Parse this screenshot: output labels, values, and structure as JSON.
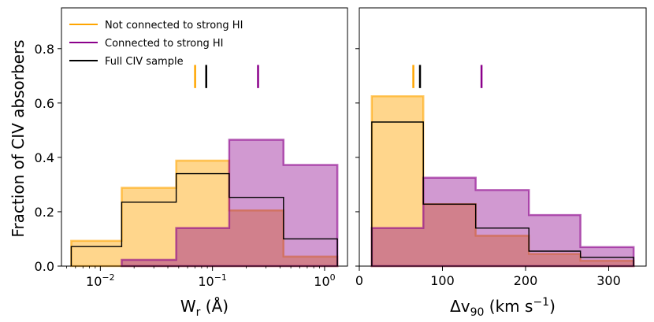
{
  "figure": {
    "ylabel": "Fraction of CIV absorbers"
  },
  "colors": {
    "not_connected": "#FFA500",
    "connected": "#8B008B",
    "full": "#000000",
    "fill_not_connected": "#FDCB7C",
    "fill_connected": "#B964B4",
    "fill_overlap": "#DB9E7E"
  },
  "chart_data": [
    {
      "type": "histogram",
      "xscale": "log",
      "xlabel": "W_r (Å)",
      "xlabel_main": "W",
      "xlabel_sub": "r",
      "xlabel_unit": " (Å)",
      "xlim": [
        0.0045,
        1.6
      ],
      "ylim": [
        0,
        0.95
      ],
      "xticks": [
        {
          "value": 0.01,
          "base": "10",
          "exp": "−2"
        },
        {
          "value": 0.1,
          "base": "10",
          "exp": "−1"
        },
        {
          "value": 1,
          "base": "10",
          "exp": "0"
        }
      ],
      "yticks": [
        "0.0",
        "0.2",
        "0.4",
        "0.6",
        "0.8"
      ],
      "legend": {
        "position": "top-left",
        "entries": [
          "Not connected to strong HI",
          "Connected to strong HI",
          "Full CIV sample"
        ]
      },
      "series": [
        {
          "name": "Not connected to strong HI",
          "edges": [
            0.0055,
            0.0155,
            0.0475,
            0.141,
            0.43,
            1.3
          ],
          "values": [
            0.093,
            0.288,
            0.388,
            0.205,
            0.035
          ]
        },
        {
          "name": "Connected to strong HI",
          "edges": [
            0.0155,
            0.0475,
            0.141,
            0.43,
            1.3
          ],
          "values": [
            0.023,
            0.14,
            0.465,
            0.372
          ]
        },
        {
          "name": "Full CIV sample",
          "edges": [
            0.0055,
            0.0155,
            0.0475,
            0.141,
            0.43,
            1.3
          ],
          "values": [
            0.072,
            0.235,
            0.34,
            0.253,
            0.1
          ]
        }
      ],
      "median_markers": [
        {
          "series": "Not connected to strong HI",
          "x": 0.07
        },
        {
          "series": "Full CIV sample",
          "x": 0.088
        },
        {
          "series": "Connected to strong HI",
          "x": 0.255
        }
      ]
    },
    {
      "type": "histogram",
      "xscale": "linear",
      "xlabel": "Δv_90 (km s^−1)",
      "xlabel_main": "Δv",
      "xlabel_sub": "90",
      "xlabel_unit": " (km s",
      "xlabel_unit_exp": "−1",
      "xlabel_close": ")",
      "xlim": [
        0,
        345
      ],
      "ylim": [
        0,
        0.95
      ],
      "xticks": [
        {
          "value": 0,
          "label": "0"
        },
        {
          "value": 100,
          "label": "100"
        },
        {
          "value": 200,
          "label": "200"
        },
        {
          "value": 300,
          "label": "300"
        }
      ],
      "series": [
        {
          "name": "Not connected to strong HI",
          "edges": [
            15,
            77,
            140,
            204,
            266,
            330
          ],
          "values": [
            0.625,
            0.228,
            0.112,
            0.045,
            0.02
          ]
        },
        {
          "name": "Connected to strong HI",
          "edges": [
            15,
            77,
            140,
            204,
            266,
            330
          ],
          "values": [
            0.14,
            0.325,
            0.28,
            0.188,
            0.07
          ]
        },
        {
          "name": "Full CIV sample",
          "edges": [
            15,
            77,
            140,
            204,
            266,
            330
          ],
          "values": [
            0.53,
            0.228,
            0.14,
            0.055,
            0.032
          ]
        }
      ],
      "median_markers": [
        {
          "series": "Not connected to strong HI",
          "x": 65
        },
        {
          "series": "Full CIV sample",
          "x": 73
        },
        {
          "series": "Connected to strong HI",
          "x": 147
        }
      ]
    }
  ]
}
